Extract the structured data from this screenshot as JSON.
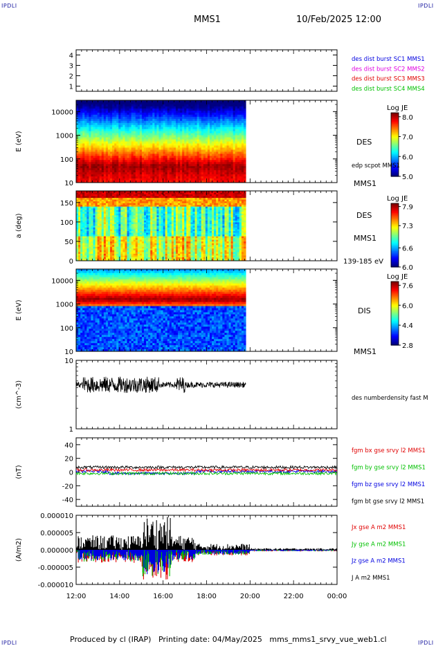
{
  "corner_labels": {
    "top_left": "IPDLI",
    "top_right": "IPDLI",
    "bottom_left": "IPDLI",
    "bottom_right": "IPDLI"
  },
  "header": {
    "title": "MMS1",
    "date": "10/Feb/2025 12:00"
  },
  "footer": {
    "text": "Produced by cl (IRAP)   Printing date: 04/May/2025   mms_mms1_srvy_vue_web1.cl"
  },
  "colors": {
    "red": "#e00000",
    "magenta": "#e000e0",
    "green": "#00c000",
    "blue": "#0000e0",
    "black": "#000000"
  },
  "x_axis": {
    "tick_labels": [
      "12:00",
      "14:00",
      "16:00",
      "18:00",
      "20:00",
      "22:00",
      "00:00"
    ],
    "range_hours": [
      12,
      24
    ],
    "data_end_hour": 19.8
  },
  "chart_data": [
    {
      "type": "line",
      "panel": "burst",
      "ytick_labels": [
        "4",
        "3",
        "2",
        "1"
      ],
      "ylim": [
        0.5,
        4.5
      ],
      "series": [
        {
          "name": "des dist burst SC1 MMS1",
          "color": "#0000e0"
        },
        {
          "name": "des dist burst SC2 MMS2",
          "color": "#e000e0"
        },
        {
          "name": "des dist burst SC3 MMS3",
          "color": "#e00000"
        },
        {
          "name": "des dist burst SC4 MMS4",
          "color": "#00c000"
        }
      ]
    },
    {
      "type": "heatmap",
      "panel": "des-energy",
      "ylabel": "E (eV)",
      "ytick_labels": [
        "10000",
        "1000",
        "100",
        "10"
      ],
      "ylim": [
        10,
        30000
      ],
      "log_scale": true,
      "right_label": "DES",
      "right_sublabel": "edp scpot MMS1",
      "bottom_label": "MMS1",
      "colorbar": {
        "title": "Log JE",
        "tick_labels": [
          "8.0",
          "7.0",
          "6.0",
          "5.0"
        ],
        "range": [
          5.0,
          8.2
        ]
      },
      "peak_energy_eV": 50
    },
    {
      "type": "heatmap",
      "panel": "des-pitch",
      "ylabel": "a (deg)",
      "ytick_labels": [
        "150",
        "100",
        "50",
        "0"
      ],
      "ylim": [
        0,
        180
      ],
      "right_label": "DES",
      "right_sublabel": "MMS1",
      "bottom_label": "139-185 eV",
      "colorbar": {
        "title": "Log JE",
        "tick_labels": [
          "7.9",
          "7.3",
          "6.6",
          "6.0"
        ],
        "range": [
          6.0,
          8.0
        ]
      }
    },
    {
      "type": "heatmap",
      "panel": "dis-energy",
      "ylabel": "E (eV)",
      "ytick_labels": [
        "10000",
        "1000",
        "100",
        "10"
      ],
      "ylim": [
        10,
        30000
      ],
      "log_scale": true,
      "right_label": "DIS",
      "bottom_label": "MMS1",
      "colorbar": {
        "title": "Log JE",
        "tick_labels": [
          "7.6",
          "6.0",
          "4.4",
          "2.8"
        ],
        "range": [
          2.8,
          7.9
        ]
      },
      "peak_energy_eV": 1500
    },
    {
      "type": "line",
      "panel": "density",
      "ylabel": "(cm^-3)",
      "ytick_labels": [
        "10",
        "1"
      ],
      "ylim": [
        1,
        10
      ],
      "log_scale": true,
      "series": [
        {
          "name": "des numberdensity fast M",
          "color": "#000000",
          "typical": 4.4
        }
      ]
    },
    {
      "type": "line",
      "panel": "fgm",
      "ylabel": "(nT)",
      "ytick_labels": [
        "40",
        "20",
        "0",
        "-20",
        "-40"
      ],
      "ylim": [
        -50,
        50
      ],
      "series": [
        {
          "name": "fgm bx gse srvy l2 MMS1",
          "color": "#e00000",
          "typical": 3
        },
        {
          "name": "fgm by gse srvy l2 MMS1",
          "color": "#00c000",
          "typical": -2
        },
        {
          "name": "fgm bz gse srvy l2 MMS1",
          "color": "#0000e0",
          "typical": 1
        },
        {
          "name": "fgm bt gse srvy l2 MMS1",
          "color": "#000000",
          "typical": 7
        }
      ]
    },
    {
      "type": "line",
      "panel": "current",
      "ylabel": "(A/m2)",
      "ytick_labels": [
        "0.000010",
        "0.000005",
        "0.000000",
        "-0.000005",
        "-0.000010"
      ],
      "ylim": [
        -1e-05,
        1e-05
      ],
      "series": [
        {
          "name": "Jx gse A m2 MMS1",
          "color": "#e00000"
        },
        {
          "name": "Jy gse A m2 MMS1",
          "color": "#00c000"
        },
        {
          "name": "Jz gse A m2 MMS1",
          "color": "#0000e0"
        },
        {
          "name": "J A m2 MMS1",
          "color": "#000000"
        }
      ]
    }
  ]
}
